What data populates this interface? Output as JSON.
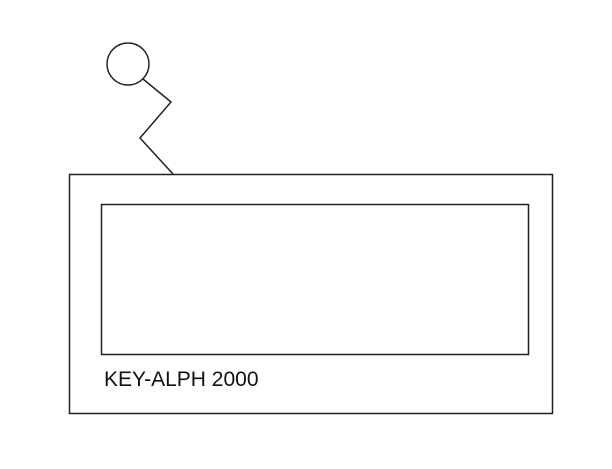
{
  "diagram": {
    "device_label": "KEY-ALPH 2000",
    "stroke_color": "#222222",
    "fill_color": "#ffffff",
    "icons": {
      "antenna": "antenna-icon"
    }
  }
}
